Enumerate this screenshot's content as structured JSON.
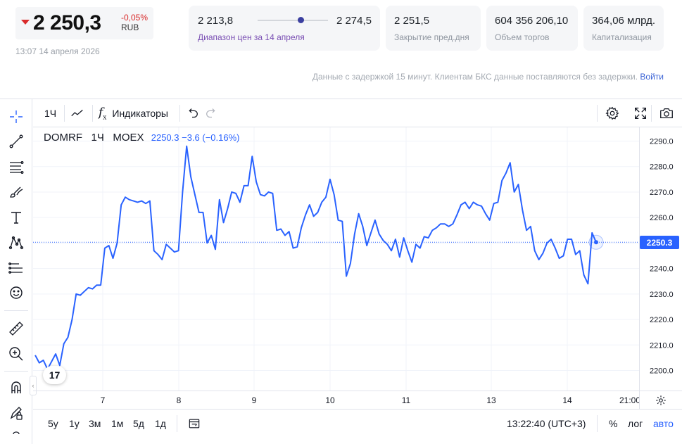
{
  "quote": {
    "price": "2 250,3",
    "change": "-0,05%",
    "currency": "RUB",
    "timestamp": "13:07 14 апреля 2026"
  },
  "stats": {
    "range_low": "2 213,8",
    "range_high": "2 274,5",
    "range_label": "Диапазон цен за 14 апреля",
    "range_position": 0.61,
    "prev_close_value": "2 251,5",
    "prev_close_label": "Закрытие пред.дня",
    "volume_value": "604 356 206,10",
    "volume_label": "Объем торгов",
    "cap_value": "364,06 млрд.",
    "cap_label": "Капитализация"
  },
  "delay_note": {
    "text": "Данные с задержкой 15 минут. Клиентам БКС данные поставляются без задержки.",
    "login": "Войти"
  },
  "toolbar": {
    "interval": "1Ч",
    "indicators": "Индикаторы"
  },
  "legend": {
    "symbol": "DOMRF",
    "interval": "1Ч",
    "exchange": "MOEX",
    "values": "2250.3 −3.6 (−0.16%)"
  },
  "bottombar": {
    "ranges": [
      "5y",
      "1y",
      "3м",
      "1м",
      "5д",
      "1д"
    ],
    "clock": "13:22:40 (UTC+3)",
    "percent": "%",
    "log": "лог",
    "auto": "авто"
  },
  "colors": {
    "line": "#2962ff",
    "down": "#d92b2b"
  },
  "chart_data": {
    "type": "line",
    "series": [
      {
        "values": [
          2206,
          2203,
          2204,
          2200.5,
          2203.5,
          2206.5,
          2202,
          2210.5,
          2213,
          2220,
          2230,
          2229.5,
          2231,
          2232.5,
          2232,
          2233.5,
          2233.5,
          2248,
          2249,
          2244,
          2250,
          2265,
          2268,
          2267,
          2266.5,
          2266,
          2266.5,
          2265.5,
          2266.5,
          2247,
          2245.5,
          2243.5,
          2249.5,
          2248,
          2246.5,
          2247,
          2270,
          2288,
          2276,
          2269,
          2262,
          2262,
          2250,
          2253,
          2247.5,
          2267,
          2258,
          2263.5,
          2270,
          2269.5,
          2266,
          2272.5,
          2272.5,
          2284,
          2274,
          2269,
          2268.5,
          2270,
          2269.5,
          2255,
          2255.5,
          2253,
          2254.5,
          2248,
          2248.5,
          2256,
          2261,
          2265,
          2260.5,
          2262,
          2266,
          2268,
          2275,
          2269,
          2259,
          2258.5,
          2237,
          2242,
          2253.5,
          2261.5,
          2256.5,
          2249,
          2254,
          2259,
          2253.5,
          2251,
          2249.5,
          2247,
          2251.5,
          2244.5,
          2252,
          2247,
          2242.5,
          2249.5,
          2248,
          2252.5,
          2252,
          2255,
          2256,
          2257.5,
          2257.5,
          2256.5,
          2257.5,
          2261,
          2265,
          2266,
          2263.5,
          2266,
          2265,
          2264.5,
          2261.5,
          2259,
          2265.5,
          2266,
          2274.5,
          2277.5,
          2281.5,
          2270,
          2273,
          2263,
          2255,
          2256.5,
          2247,
          2243.5,
          2246,
          2250,
          2251.5,
          2248,
          2244,
          2245,
          2251.5,
          2251.5,
          2245.5,
          2247,
          2237.5,
          2234,
          2254,
          2250.3
        ]
      }
    ],
    "x_ticks": [
      "7",
      "8",
      "9",
      "10",
      "11",
      "13",
      "14",
      "21:00"
    ],
    "y_ticks": [
      "2290.0",
      "2280.0",
      "2270.0",
      "2260.0",
      "2250.0",
      "2240.0",
      "2230.0",
      "2220.0",
      "2210.0",
      "2200.0"
    ],
    "ylim": [
      2196,
      2294
    ],
    "last_price": "2250.3",
    "grid": true
  }
}
